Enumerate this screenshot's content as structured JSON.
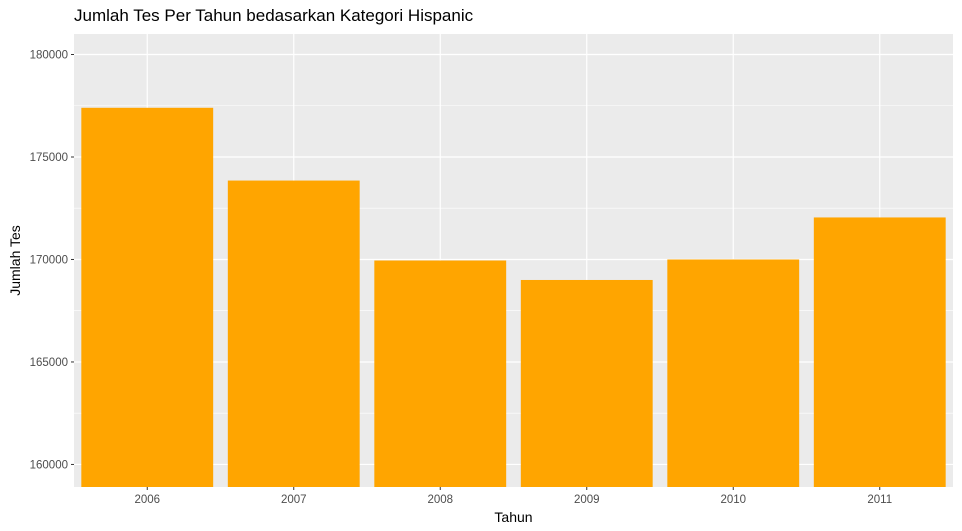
{
  "chart_data": {
    "type": "bar",
    "title": "Jumlah Tes Per Tahun bedasarkan Kategori Hispanic",
    "xlabel": "Tahun",
    "ylabel": "Jumlah Tes",
    "categories": [
      "2006",
      "2007",
      "2008",
      "2009",
      "2010",
      "2011"
    ],
    "values": [
      177400,
      173850,
      169950,
      169000,
      170000,
      172050
    ],
    "ylim": [
      158900,
      181000
    ],
    "yticks": [
      160000,
      165000,
      170000,
      175000,
      180000
    ],
    "ytick_labels": [
      "160000",
      "165000",
      "170000",
      "175000",
      "180000"
    ],
    "bar_color": "#ffa500",
    "panel_color": "#ebebeb",
    "grid_color": "#ffffff",
    "grid": true,
    "legend": "none"
  }
}
